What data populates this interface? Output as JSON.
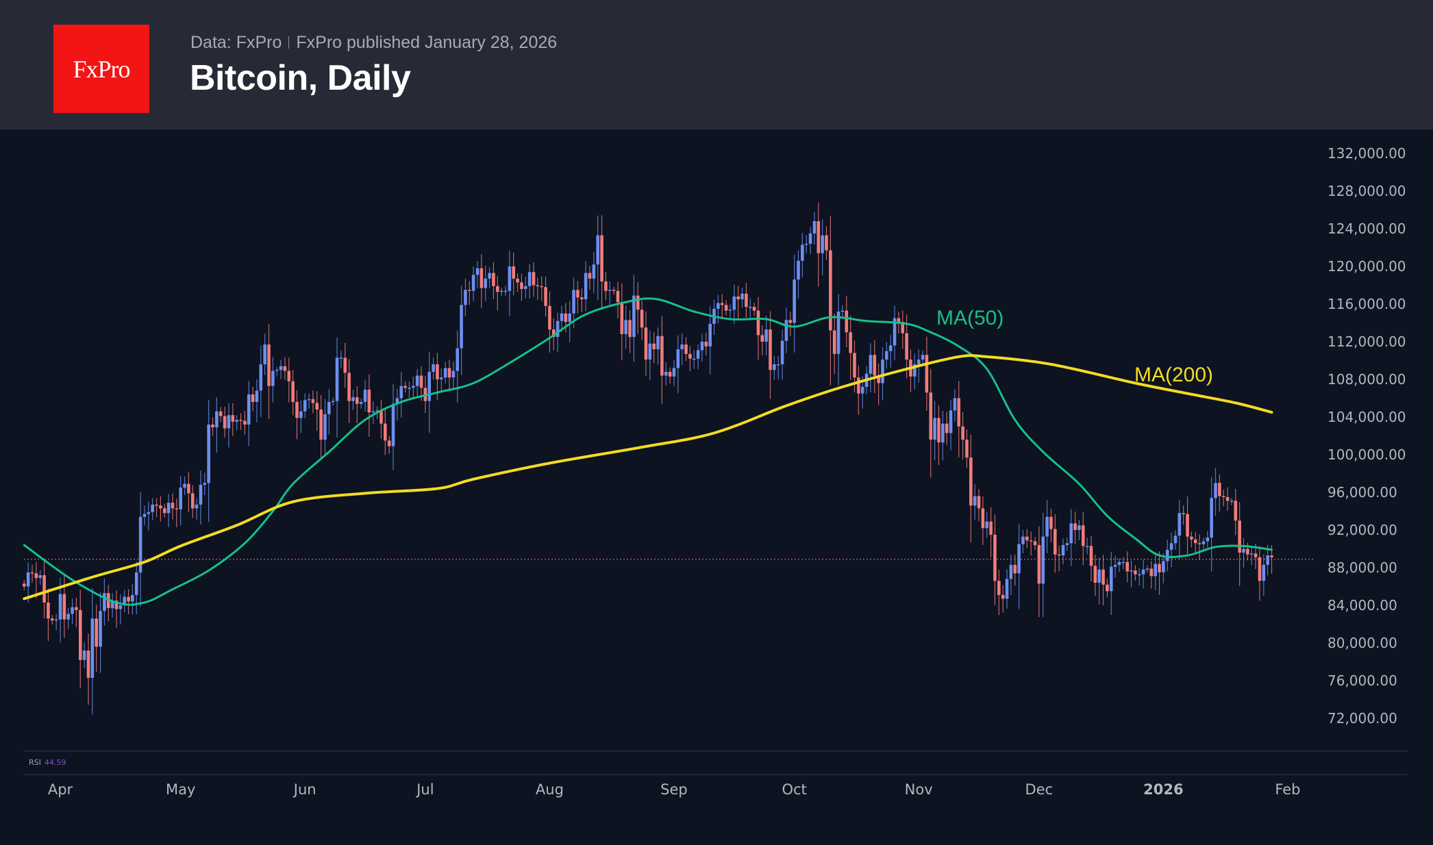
{
  "header": {
    "logo_text": "FxPro",
    "source": "Data: FxPro",
    "published": "FxPro published January 28, 2026",
    "title": "Bitcoin, Daily"
  },
  "colors": {
    "background": "#0d1320",
    "header_background": "#272a36",
    "logo": "#f31414",
    "up_candle": "#6d8ff0",
    "down_candle": "#f27c7c",
    "ma50": "#14c28a",
    "ma200": "#f2dc22",
    "last_price_line": "#b0565e",
    "rsi_value": "#7e57c2"
  },
  "rsi": {
    "label": "RSI",
    "value": "44.59"
  },
  "chart_data": {
    "type": "candlestick",
    "title": "Bitcoin, Daily",
    "xlabel": "",
    "ylabel": "",
    "ylim": [
      70000,
      134000
    ],
    "y_ticks": [
      "132,000.00",
      "128,000.00",
      "124,000.00",
      "120,000.00",
      "116,000.00",
      "112,000.00",
      "108,000.00",
      "104,000.00",
      "100,000.00",
      "96,000.00",
      "92,000.00",
      "88,000.00",
      "84,000.00",
      "80,000.00",
      "76,000.00",
      "72,000.00"
    ],
    "x_ticks": [
      {
        "label": "Apr",
        "date": "2025-04-01",
        "bold": false
      },
      {
        "label": "May",
        "date": "2025-05-01",
        "bold": false
      },
      {
        "label": "Jun",
        "date": "2025-06-01",
        "bold": false
      },
      {
        "label": "Jul",
        "date": "2025-07-01",
        "bold": false
      },
      {
        "label": "Aug",
        "date": "2025-08-01",
        "bold": false
      },
      {
        "label": "Sep",
        "date": "2025-09-01",
        "bold": false
      },
      {
        "label": "Oct",
        "date": "2025-10-01",
        "bold": false
      },
      {
        "label": "Nov",
        "date": "2025-11-01",
        "bold": false
      },
      {
        "label": "Dec",
        "date": "2025-12-01",
        "bold": false
      },
      {
        "label": "2026",
        "date": "2026-01-01",
        "bold": true
      },
      {
        "label": "Feb",
        "date": "2026-02-01",
        "bold": false
      }
    ],
    "grid": false,
    "last_price": 88900,
    "first_date": "2025-03-23",
    "closes": [
      86000,
      87500,
      87400,
      86900,
      87200,
      84300,
      82600,
      82400,
      82500,
      85200,
      82500,
      83100,
      83800,
      83500,
      78200,
      79200,
      76300,
      82600,
      79600,
      83400,
      85300,
      83700,
      84500,
      83600,
      84000,
      84900,
      84400,
      85100,
      87500,
      93400,
      93700,
      93900,
      94700,
      94600,
      94300,
      93800,
      94900,
      94300,
      94200,
      96500,
      96900,
      95900,
      94300,
      94700,
      96800,
      97000,
      103200,
      102900,
      104600,
      104100,
      102800,
      104200,
      103500,
      103700,
      103600,
      103200,
      106400,
      105600,
      106800,
      109600,
      111700,
      107300,
      108900,
      109000,
      109400,
      108900,
      107800,
      105600,
      103900,
      104600,
      105800,
      105900,
      105500,
      104800,
      101600,
      104300,
      105600,
      105700,
      110300,
      110300,
      108700,
      105700,
      106100,
      105400,
      105600,
      106900,
      104500,
      104600,
      104700,
      103300,
      101500,
      100900,
      105400,
      106000,
      107300,
      107100,
      107100,
      107300,
      108400,
      107100,
      105700,
      108800,
      109600,
      108000,
      108200,
      109200,
      108200,
      108900,
      111300,
      115900,
      117500,
      117400,
      119100,
      119800,
      117700,
      118700,
      119300,
      117900,
      117300,
      117400,
      117400,
      120000,
      118700,
      118300,
      117600,
      117900,
      119400,
      118000,
      117900,
      117800,
      115800,
      113300,
      112500,
      114200,
      115000,
      114100,
      115000,
      117500,
      116700,
      116500,
      119300,
      118700,
      120200,
      123300,
      118400,
      117400,
      117500,
      117400,
      116200,
      112800,
      114300,
      112500,
      116900,
      115400,
      113500,
      110100,
      111800,
      111200,
      112600,
      108400,
      108800,
      108300,
      109200,
      111200,
      111700,
      110700,
      110200,
      110200,
      111100,
      112000,
      111500,
      113900,
      115500,
      116100,
      115900,
      115300,
      115400,
      116800,
      116500,
      117100,
      115700,
      115700,
      115300,
      112700,
      112000,
      113300,
      109000,
      109600,
      109600,
      112100,
      114300,
      114000,
      118600,
      120600,
      122300,
      122400,
      123500,
      124800,
      121400,
      123300,
      121700,
      113200,
      110700,
      115200,
      115300,
      113000,
      110800,
      108200,
      106500,
      107200,
      108600,
      110600,
      108400,
      107600,
      110100,
      111000,
      111600,
      114500,
      114100,
      112900,
      110100,
      108300,
      109600,
      110100,
      110600,
      106600,
      101600,
      103900,
      101300,
      103300,
      102300,
      104700,
      106000,
      103000,
      101600,
      99700,
      94600,
      95600,
      94300,
      92200,
      92900,
      91500,
      86600,
      85100,
      84700,
      86800,
      88300,
      87400,
      90500,
      91300,
      90900,
      90800,
      90400,
      86300,
      91300,
      93400,
      92100,
      89400,
      89300,
      90400,
      90600,
      92700,
      92000,
      92500,
      90300,
      90300,
      88200,
      86400,
      87800,
      86200,
      85500,
      88100,
      88300,
      88600,
      88600,
      87600,
      87700,
      87300,
      87300,
      87800,
      87900,
      87100,
      88400,
      87500,
      88700,
      89900,
      90600,
      91400,
      93800,
      93700,
      91300,
      91000,
      90600,
      90500,
      90800,
      91200,
      95400,
      97000,
      95600,
      95500,
      95100,
      95100,
      93000,
      89600,
      90000,
      89400,
      89500,
      89100,
      86600,
      88300,
      89300,
      89100
    ],
    "series": [
      {
        "name": "MA(50)",
        "points": [
          [
            "2025-03-23",
            90400
          ],
          [
            "2025-04-04",
            86700
          ],
          [
            "2025-04-15",
            84300
          ],
          [
            "2025-04-22",
            84300
          ],
          [
            "2025-04-29",
            85700
          ],
          [
            "2025-05-08",
            87700
          ],
          [
            "2025-05-17",
            90600
          ],
          [
            "2025-05-24",
            94000
          ],
          [
            "2025-05-29",
            96900
          ],
          [
            "2025-06-07",
            100300
          ],
          [
            "2025-06-16",
            103700
          ],
          [
            "2025-06-25",
            105600
          ],
          [
            "2025-07-04",
            106600
          ],
          [
            "2025-07-13",
            107600
          ],
          [
            "2025-07-23",
            110000
          ],
          [
            "2025-08-01",
            112400
          ],
          [
            "2025-08-10",
            114900
          ],
          [
            "2025-08-21",
            116300
          ],
          [
            "2025-08-28",
            116500
          ],
          [
            "2025-09-06",
            115200
          ],
          [
            "2025-09-15",
            114400
          ],
          [
            "2025-09-24",
            114400
          ],
          [
            "2025-10-01",
            113600
          ],
          [
            "2025-10-10",
            114600
          ],
          [
            "2025-10-19",
            114200
          ],
          [
            "2025-10-29",
            113900
          ],
          [
            "2025-11-04",
            113000
          ],
          [
            "2025-11-11",
            111500
          ],
          [
            "2025-11-18",
            109100
          ],
          [
            "2025-11-25",
            103700
          ],
          [
            "2025-12-02",
            100300
          ],
          [
            "2025-12-11",
            96900
          ],
          [
            "2025-12-18",
            93500
          ],
          [
            "2025-12-25",
            91100
          ],
          [
            "2025-12-31",
            89300
          ],
          [
            "2026-01-07",
            89300
          ],
          [
            "2026-01-14",
            90200
          ],
          [
            "2026-01-21",
            90300
          ],
          [
            "2026-01-28",
            89900
          ]
        ]
      },
      {
        "name": "MA(200)",
        "points": [
          [
            "2025-03-23",
            84700
          ],
          [
            "2025-04-09",
            87000
          ],
          [
            "2025-04-22",
            88600
          ],
          [
            "2025-05-01",
            90300
          ],
          [
            "2025-05-15",
            92500
          ],
          [
            "2025-05-29",
            95000
          ],
          [
            "2025-06-16",
            95900
          ],
          [
            "2025-07-04",
            96400
          ],
          [
            "2025-07-13",
            97400
          ],
          [
            "2025-08-01",
            99100
          ],
          [
            "2025-08-24",
            100800
          ],
          [
            "2025-09-11",
            102300
          ],
          [
            "2025-09-29",
            105200
          ],
          [
            "2025-10-13",
            107200
          ],
          [
            "2025-10-29",
            109100
          ],
          [
            "2025-11-11",
            110400
          ],
          [
            "2025-11-18",
            110400
          ],
          [
            "2025-12-04",
            109600
          ],
          [
            "2025-12-25",
            107600
          ],
          [
            "2026-01-07",
            106500
          ],
          [
            "2026-01-19",
            105500
          ],
          [
            "2026-01-28",
            104500
          ]
        ]
      }
    ]
  }
}
